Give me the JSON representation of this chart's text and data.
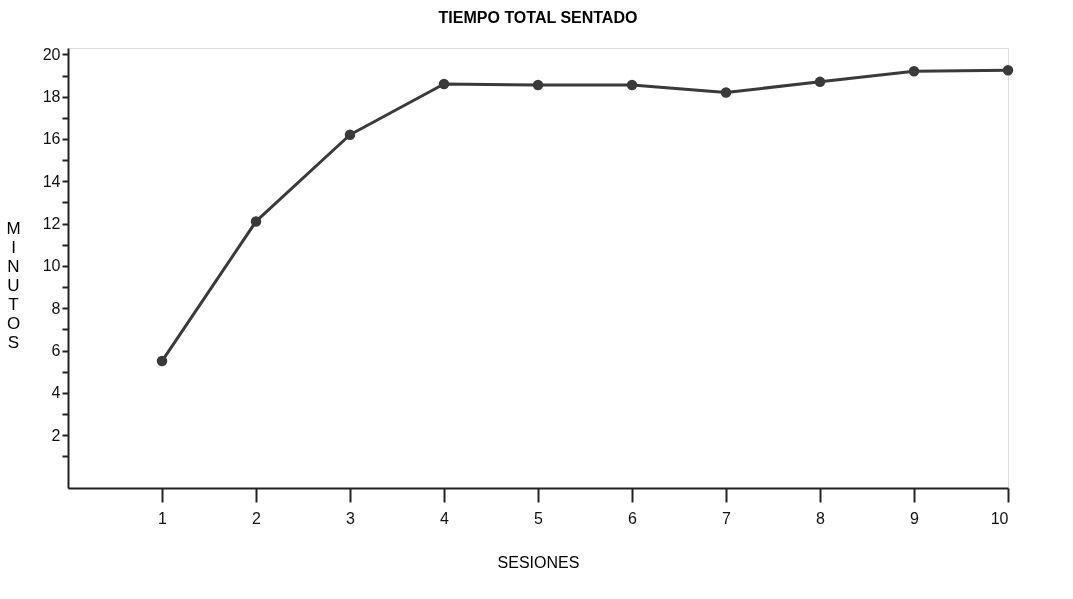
{
  "chart_data": {
    "type": "line",
    "title": "TIEMPO TOTAL SENTADO",
    "xlabel": "SESIONES",
    "ylabel": "MINUTOS",
    "x": [
      1,
      2,
      3,
      4,
      5,
      6,
      7,
      8,
      9,
      10
    ],
    "series": [
      {
        "color": "#3a3a3a",
        "values": [
          5.5,
          12.1,
          16.2,
          18.6,
          18.55,
          18.55,
          18.2,
          18.7,
          19.2,
          19.25
        ]
      }
    ],
    "xlim": [
      0,
      10
    ],
    "xticks": [
      1,
      2,
      3,
      4,
      5,
      6,
      7,
      8,
      9,
      10
    ],
    "ylim": [
      -0.5,
      20.3
    ],
    "yticks": [
      {
        "value": 1,
        "label": null
      },
      2,
      {
        "value": 3,
        "label": null
      },
      4,
      {
        "value": 5,
        "label": null
      },
      6,
      {
        "value": 7,
        "label": null
      },
      8,
      {
        "value": 9,
        "label": null
      },
      10,
      {
        "value": 11,
        "label": null
      },
      12,
      {
        "value": 13,
        "label": null
      },
      14,
      {
        "value": 15,
        "label": null
      },
      16,
      {
        "value": 17,
        "label": null
      },
      18,
      {
        "value": 19,
        "label": null
      },
      20
    ],
    "marker": "circle",
    "line_style": "solid",
    "grid": false
  }
}
